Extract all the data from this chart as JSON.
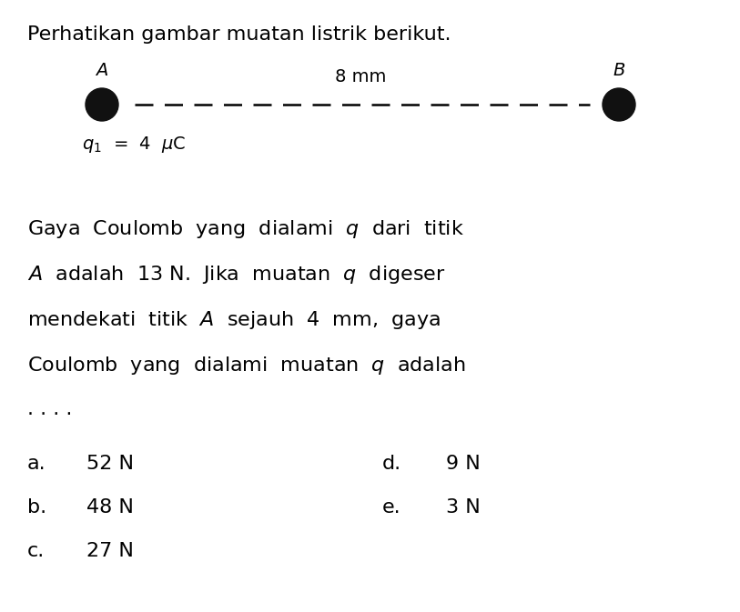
{
  "bg_color": "#ffffff",
  "title": "Perhatikan gambar muatan listrik berikut.",
  "title_fontsize": 16,
  "label_A": "A",
  "label_B": "B",
  "dot_color": "#111111",
  "distance_label": "8 mm",
  "distance_fontsize": 14,
  "charge_label_fontsize": 14,
  "body_fontsize": 16,
  "option_fontsize": 16
}
